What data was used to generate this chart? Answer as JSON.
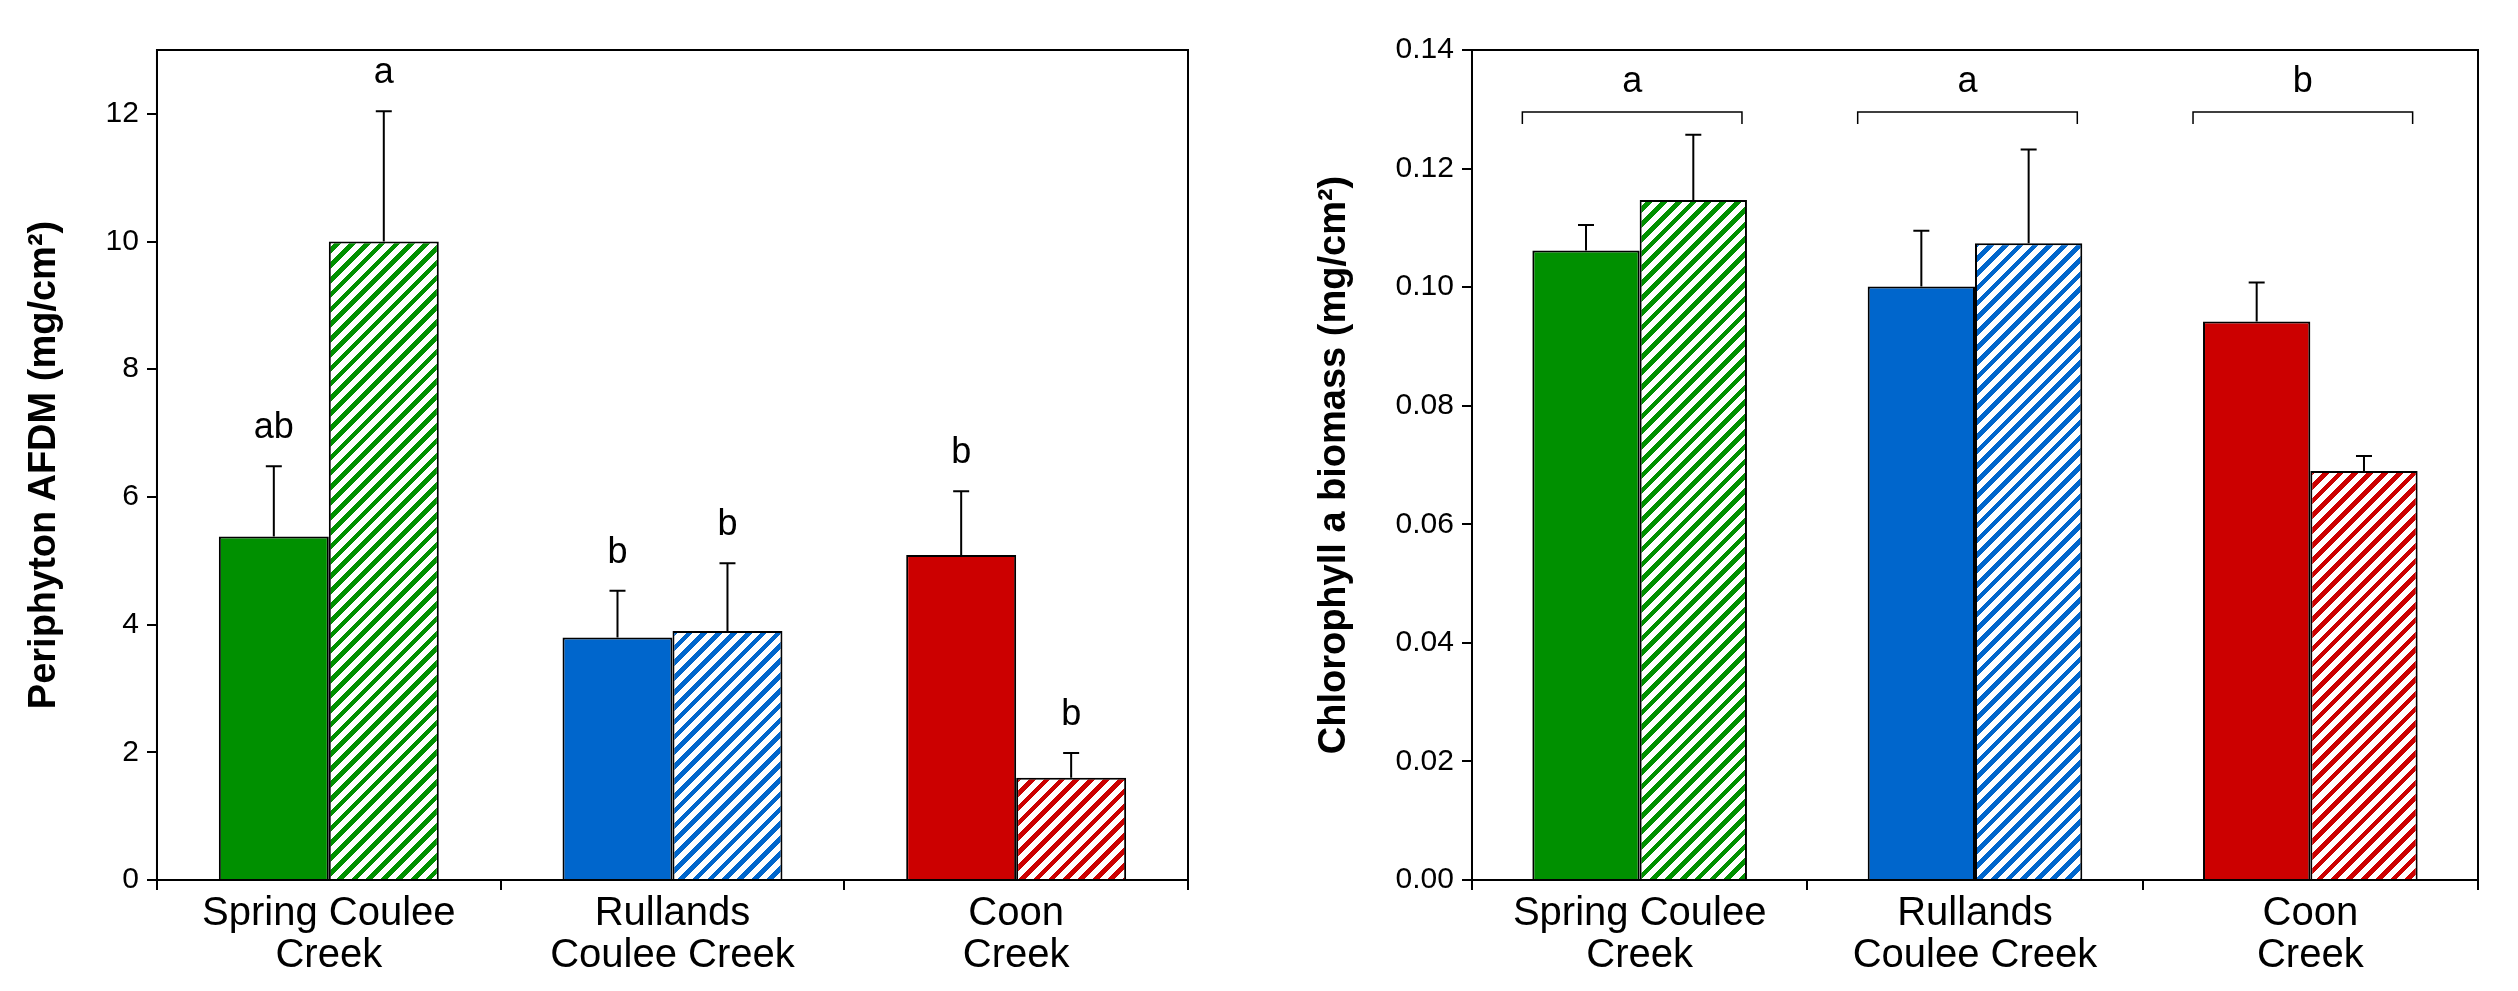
{
  "chart_data": [
    {
      "type": "bar",
      "ylabel": "Periphyton AFDM (mg/cm²)",
      "categories": [
        "Spring Coulee\nCreek",
        "Rullands\nCoulee Creek",
        "Coon\nCreek"
      ],
      "ylim": [
        0,
        13
      ],
      "yticks": [
        0,
        2,
        4,
        6,
        8,
        10,
        12
      ],
      "series": [
        {
          "colors": [
            "#009000",
            "#0066cc",
            "#cc0000"
          ],
          "values": [
            5.38,
            3.8,
            5.09
          ],
          "errors": [
            [
              5.38,
              6.48
            ],
            [
              3.8,
              4.53
            ],
            [
              5.09,
              6.09
            ]
          ]
        },
        {
          "colors": [
            "#009000",
            "#0066cc",
            "#cc0000"
          ],
          "values": [
            10.0,
            3.9,
            1.6
          ],
          "errors": [
            [
              10.0,
              12.04
            ],
            [
              3.9,
              4.96
            ],
            [
              1.6,
              1.99
            ]
          ]
        }
      ],
      "annotations": [
        "ab",
        "a",
        "b",
        "b",
        "b",
        {
          "text": "b",
          "x": "Coon\nCreek",
          "y": 1.99
        }
      ]
    },
    {
      "type": "bar",
      "ylabel": "Chlorophyll a biomass (mg/cm²)",
      "categories": [
        "Spring Coulee\nCreek",
        "Rullands\nCoulee Creek",
        "Coon\nCreek"
      ],
      "ylim": [
        0,
        0.14
      ],
      "yticks": [
        {
          "value": 0,
          "label": "0.00"
        },
        {
          "value": 0.02,
          "label": "0.02"
        },
        {
          "value": 0.04,
          "label": "0.04"
        },
        {
          "value": 0.06,
          "label": "0.06"
        },
        {
          "value": 0.08,
          "label": "0.08"
        },
        {
          "value": 0.1,
          "label": "0.10"
        },
        {
          "value": 0.12,
          "label": "0.12"
        },
        {
          "value": 0.14,
          "label": "0.14"
        }
      ],
      "series": [
        {
          "colors": [
            "#009000",
            "#0066cc",
            "#cc0000"
          ],
          "values": [
            0.1062,
            0.1001,
            0.0942
          ],
          "errors": [
            [
              0.1062,
              0.1105
            ],
            [
              0.1001,
              0.1095
            ],
            [
              0.0942,
              0.1008
            ]
          ]
        },
        {
          "colors": [
            "#009000",
            "#0066cc",
            "#cc0000"
          ],
          "values": [
            0.1147,
            0.1074,
            0.069
          ],
          "errors": [
            [
              0.1147,
              0.1257
            ],
            [
              0.1074,
              0.1232
            ],
            [
              0.069,
              0.0715
            ]
          ]
        }
      ],
      "annotations": [
        "a",
        "a",
        "b"
      ]
    }
  ]
}
